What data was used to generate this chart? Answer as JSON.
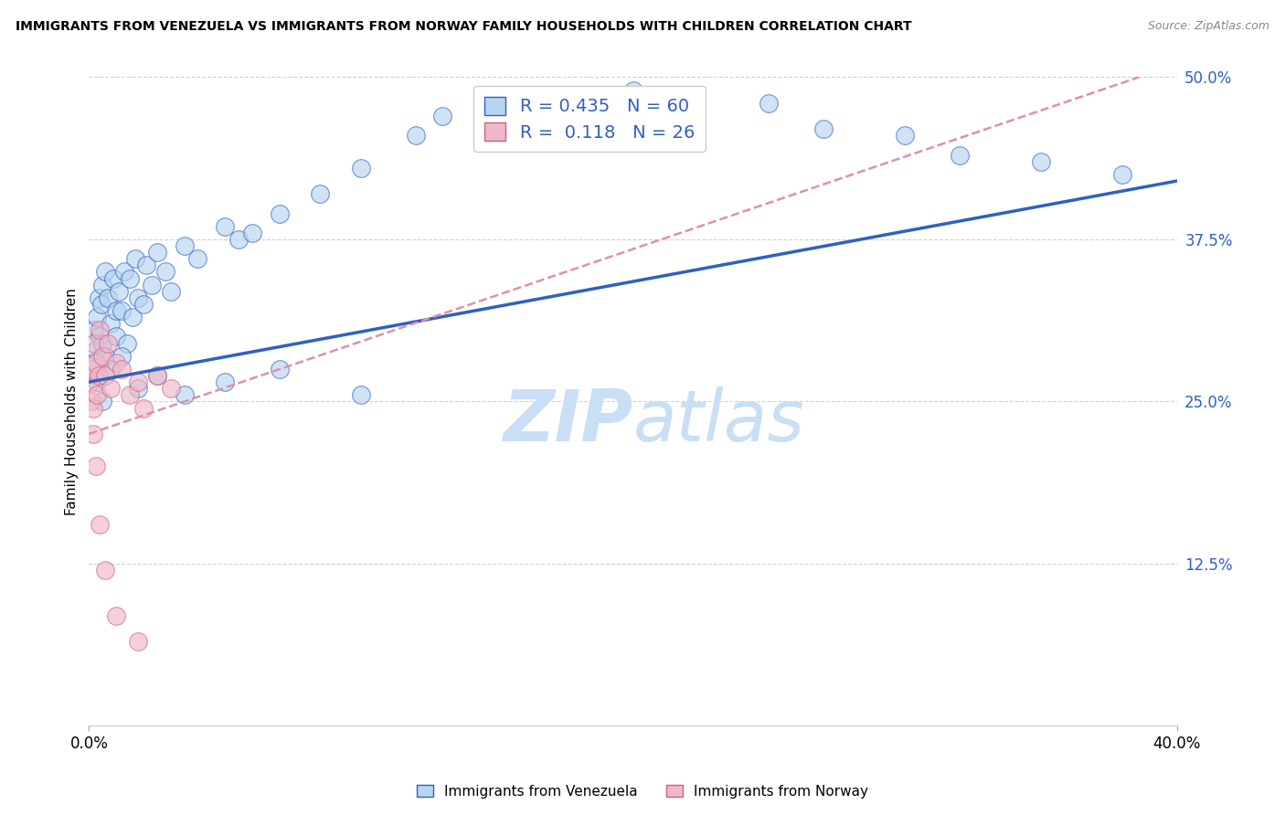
{
  "title": "IMMIGRANTS FROM VENEZUELA VS IMMIGRANTS FROM NORWAY FAMILY HOUSEHOLDS WITH CHILDREN CORRELATION CHART",
  "source": "Source: ZipAtlas.com",
  "ylabel": "Family Households with Children",
  "xmin": 0.0,
  "xmax": 40.0,
  "ymin": 0.0,
  "ymax": 50.0,
  "yticks": [
    12.5,
    25.0,
    37.5,
    50.0
  ],
  "xticks": [
    0.0,
    40.0
  ],
  "r_venezuela": 0.435,
  "n_venezuela": 60,
  "r_norway": 0.118,
  "n_norway": 26,
  "color_venezuela": "#b8d4f0",
  "color_norway": "#f0b8c8",
  "line_color_venezuela": "#3060c0",
  "line_color_norway_solid": "#d06080",
  "line_color_norway_dashed": "#e090a8",
  "tick_label_color": "#3060c0",
  "watermark_color": "#ddeeff",
  "background_color": "#ffffff",
  "grid_color": "#cccccc",
  "ven_x": [
    0.15,
    0.2,
    0.25,
    0.3,
    0.35,
    0.4,
    0.45,
    0.5,
    0.5,
    0.6,
    0.6,
    0.7,
    0.8,
    0.9,
    1.0,
    1.0,
    1.1,
    1.2,
    1.3,
    1.4,
    1.5,
    1.6,
    1.7,
    1.8,
    2.0,
    2.1,
    2.3,
    2.5,
    2.8,
    3.0,
    3.5,
    4.0,
    5.0,
    5.5,
    6.0,
    7.0,
    8.5,
    10.0,
    12.0,
    13.0,
    15.0,
    18.0,
    20.0,
    22.0,
    25.0,
    27.0,
    30.0,
    32.0,
    35.0,
    38.0,
    0.3,
    0.5,
    0.8,
    1.2,
    1.8,
    2.5,
    3.5,
    5.0,
    7.0,
    10.0
  ],
  "ven_y": [
    28.0,
    30.5,
    29.0,
    31.5,
    33.0,
    30.0,
    32.5,
    34.0,
    29.5,
    35.0,
    28.5,
    33.0,
    31.0,
    34.5,
    30.0,
    32.0,
    33.5,
    32.0,
    35.0,
    29.5,
    34.5,
    31.5,
    36.0,
    33.0,
    32.5,
    35.5,
    34.0,
    36.5,
    35.0,
    33.5,
    37.0,
    36.0,
    38.5,
    37.5,
    38.0,
    39.5,
    41.0,
    43.0,
    45.5,
    47.0,
    48.5,
    47.0,
    49.0,
    47.5,
    48.0,
    46.0,
    45.5,
    44.0,
    43.5,
    42.5,
    26.5,
    25.0,
    27.5,
    28.5,
    26.0,
    27.0,
    25.5,
    26.5,
    27.5,
    25.5
  ],
  "nor_x": [
    0.05,
    0.08,
    0.1,
    0.15,
    0.2,
    0.25,
    0.3,
    0.35,
    0.4,
    0.5,
    0.6,
    0.7,
    0.8,
    1.0,
    1.2,
    1.5,
    1.8,
    2.0,
    2.5,
    3.0,
    0.15,
    0.25,
    0.4,
    0.6,
    1.0,
    1.8
  ],
  "nor_y": [
    26.5,
    25.0,
    27.5,
    24.5,
    29.5,
    28.0,
    25.5,
    27.0,
    30.5,
    28.5,
    27.0,
    29.5,
    26.0,
    28.0,
    27.5,
    25.5,
    26.5,
    24.5,
    27.0,
    26.0,
    22.5,
    20.0,
    15.5,
    12.0,
    8.5,
    6.5
  ],
  "ven_line_x0": 0.0,
  "ven_line_y0": 26.5,
  "ven_line_x1": 40.0,
  "ven_line_y1": 42.0,
  "nor_line_x0": 0.0,
  "nor_line_y0": 22.5,
  "nor_line_x1": 40.0,
  "nor_line_y1": 51.0
}
